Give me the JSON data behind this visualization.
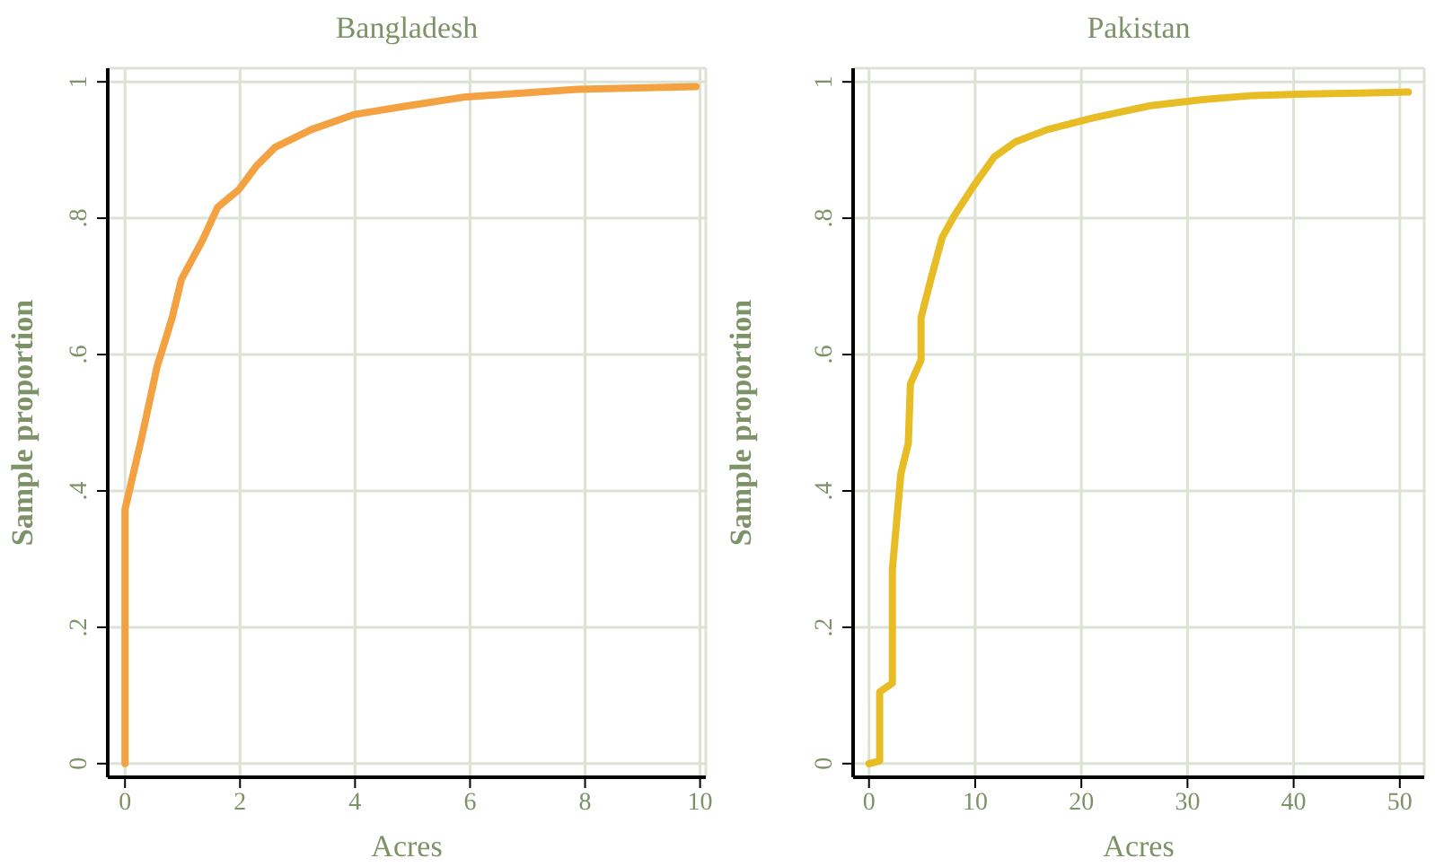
{
  "chart_data": [
    {
      "type": "line",
      "title": "Bangladesh",
      "xlabel": "Acres",
      "ylabel": "Sample proportion",
      "color": "#f4a142",
      "x": [
        0,
        0,
        0.29,
        0.56,
        0.82,
        0.98,
        1.35,
        1.61,
        1.98,
        2.29,
        2.61,
        3.24,
        3.98,
        4.93,
        5.93,
        7.87,
        9.93
      ],
      "values": [
        0,
        0.373,
        0.478,
        0.583,
        0.654,
        0.71,
        0.768,
        0.816,
        0.842,
        0.877,
        0.904,
        0.93,
        0.952,
        0.965,
        0.978,
        0.989,
        0.993
      ],
      "xlim": [
        -0.3,
        10.1
      ],
      "xticks": [
        0,
        2,
        4,
        6,
        8,
        10
      ],
      "ylim": [
        -0.02,
        1.02
      ],
      "yticks": [
        {
          "value": 0,
          "label": "0"
        },
        {
          "value": 0.2,
          "label": ".2"
        },
        {
          "value": 0.4,
          "label": ".4"
        },
        {
          "value": 0.6,
          "label": ".6"
        },
        {
          "value": 0.8,
          "label": ".8"
        },
        {
          "value": 1,
          "label": "1"
        }
      ],
      "grid": true
    },
    {
      "type": "line",
      "title": "Pakistan",
      "xlabel": "Acres",
      "ylabel": "Sample proportion",
      "color": "#e8bc25",
      "x": [
        0,
        1,
        1,
        2.2,
        2.2,
        3,
        3.7,
        3.9,
        4.9,
        4.9,
        5.9,
        6.9,
        8,
        9.8,
        11.8,
        13.8,
        16.8,
        21.1,
        26.5,
        31.4,
        36.2,
        41.1,
        50.8
      ],
      "values": [
        0,
        0.004,
        0.105,
        0.118,
        0.285,
        0.425,
        0.47,
        0.557,
        0.592,
        0.654,
        0.715,
        0.772,
        0.803,
        0.846,
        0.89,
        0.912,
        0.93,
        0.947,
        0.965,
        0.974,
        0.98,
        0.982,
        0.985
      ],
      "xlim": [
        -1.5,
        52.3
      ],
      "xticks": [
        0,
        10,
        20,
        30,
        40,
        50
      ],
      "ylim": [
        -0.02,
        1.02
      ],
      "yticks": [
        {
          "value": 0,
          "label": "0"
        },
        {
          "value": 0.2,
          "label": ".2"
        },
        {
          "value": 0.4,
          "label": ".4"
        },
        {
          "value": 0.6,
          "label": ".6"
        },
        {
          "value": 0.8,
          "label": ".8"
        },
        {
          "value": 1,
          "label": "1"
        }
      ],
      "grid": true
    }
  ]
}
